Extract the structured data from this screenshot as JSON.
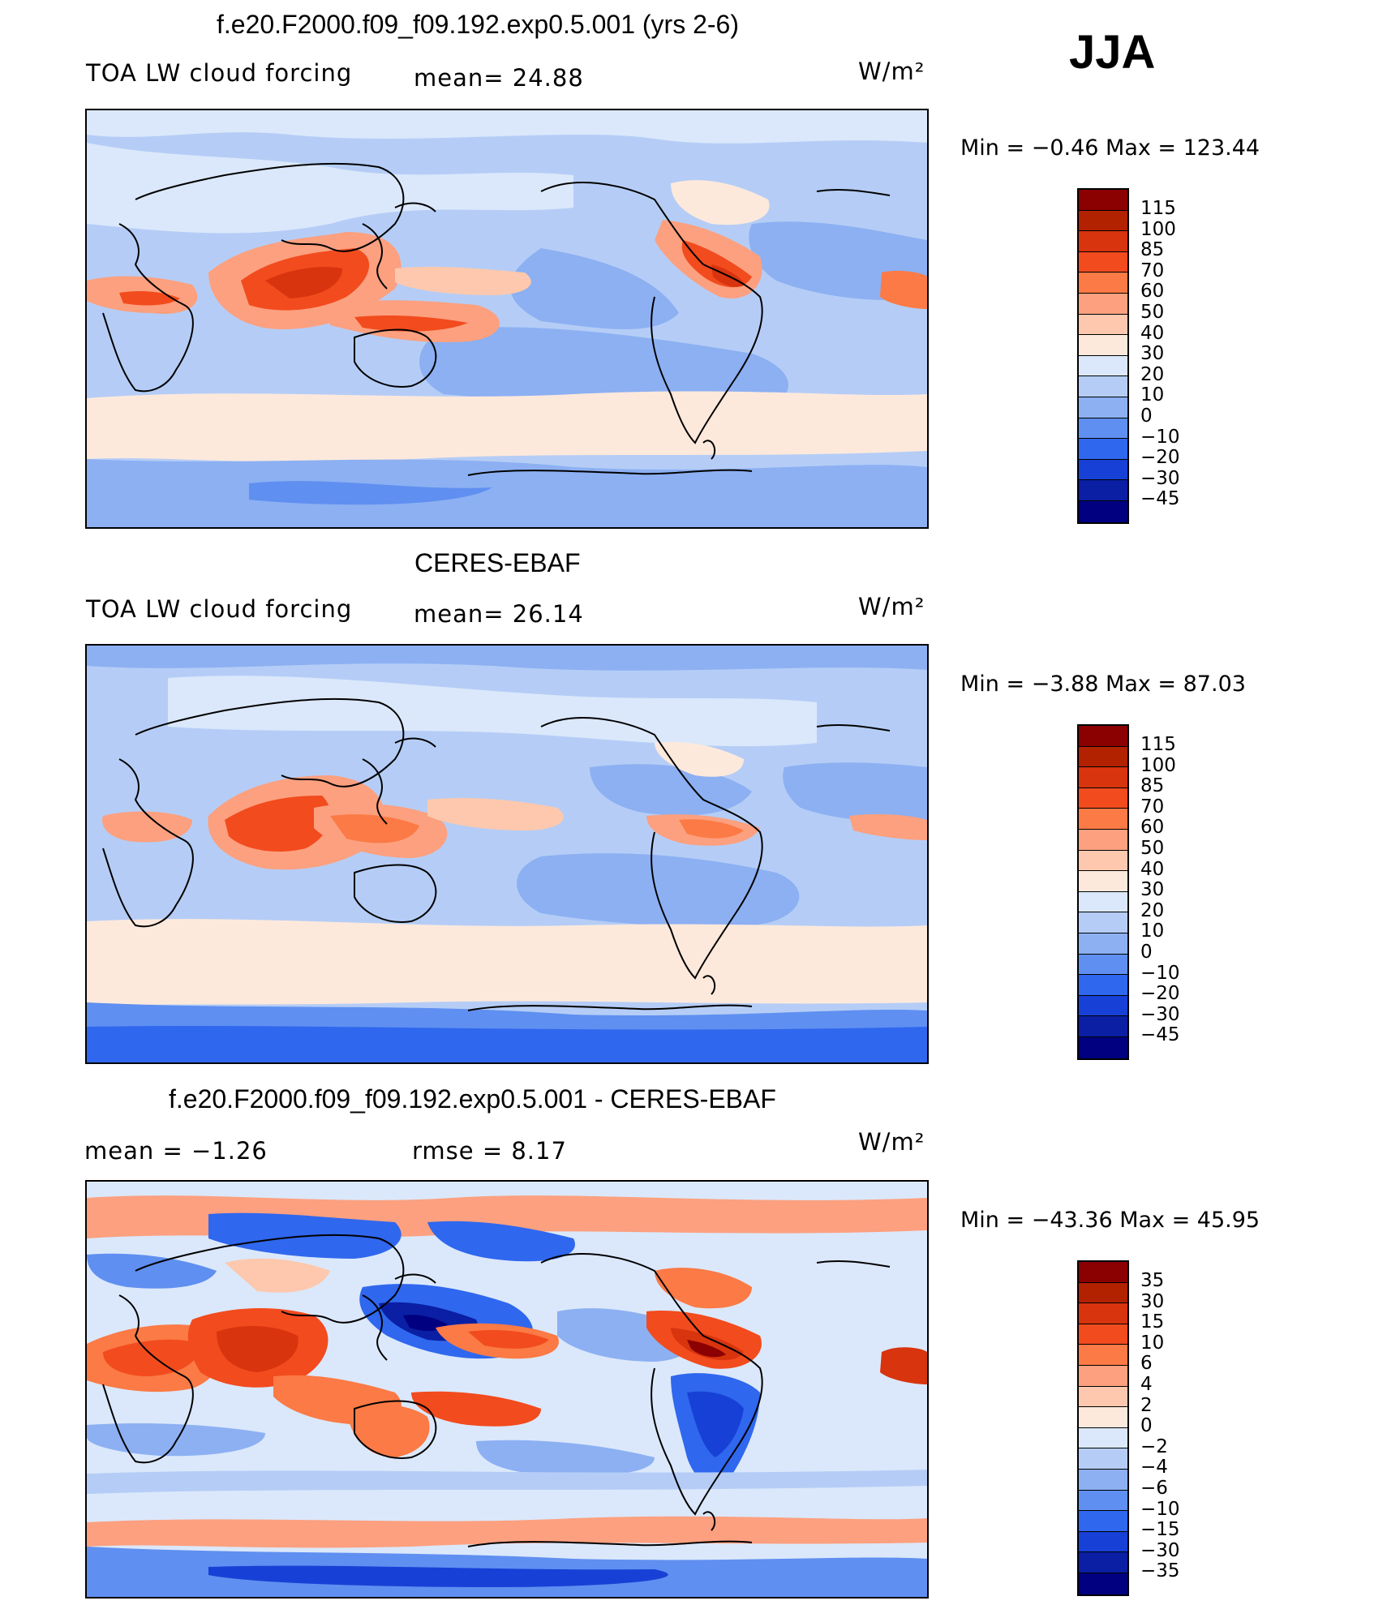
{
  "season": "JJA",
  "panels": [
    {
      "title": "f.e20.F2000.f09_f09.192.exp0.5.001 (yrs 2-6)",
      "left_label": "TOA LW cloud forcing",
      "mid_label": "mean=  24.88",
      "units": "W/m²",
      "minmax": "Min =  −0.46 Max = 123.44"
    },
    {
      "title": "CERES-EBAF",
      "left_label": "TOA LW cloud forcing",
      "mid_label": "mean=  26.14",
      "units": "W/m²",
      "minmax": "Min =  −3.88 Max =  87.03"
    },
    {
      "title": "f.e20.F2000.f09_f09.192.exp0.5.001 - CERES-EBAF",
      "left_label": "mean =  −1.26",
      "mid_label": "rmse =   8.17",
      "units": "W/m²",
      "minmax": "Min = −43.36 Max =  45.95"
    }
  ],
  "colorbars": [
    {
      "labels": [
        "115",
        "100",
        "85",
        "70",
        "60",
        "50",
        "40",
        "30",
        "20",
        "10",
        "0",
        "−10",
        "−20",
        "−30",
        "−45"
      ]
    },
    {
      "labels": [
        "115",
        "100",
        "85",
        "70",
        "60",
        "50",
        "40",
        "30",
        "20",
        "10",
        "0",
        "−10",
        "−20",
        "−30",
        "−45"
      ]
    },
    {
      "labels": [
        "35",
        "30",
        "15",
        "10",
        "6",
        "4",
        "2",
        "0",
        "−2",
        "−4",
        "−6",
        "−10",
        "−15",
        "−30",
        "−35"
      ]
    }
  ],
  "colors": {
    "palette": [
      "#8b0000",
      "#b22200",
      "#d8340e",
      "#f24b1e",
      "#fb7a45",
      "#fca07f",
      "#fdc8ad",
      "#fde9dc",
      "#dbe8fb",
      "#b5cdf6",
      "#8cb0f2",
      "#5f8ff0",
      "#2f67ee",
      "#1741d6",
      "#0a1fa3",
      "#000080"
    ]
  }
}
